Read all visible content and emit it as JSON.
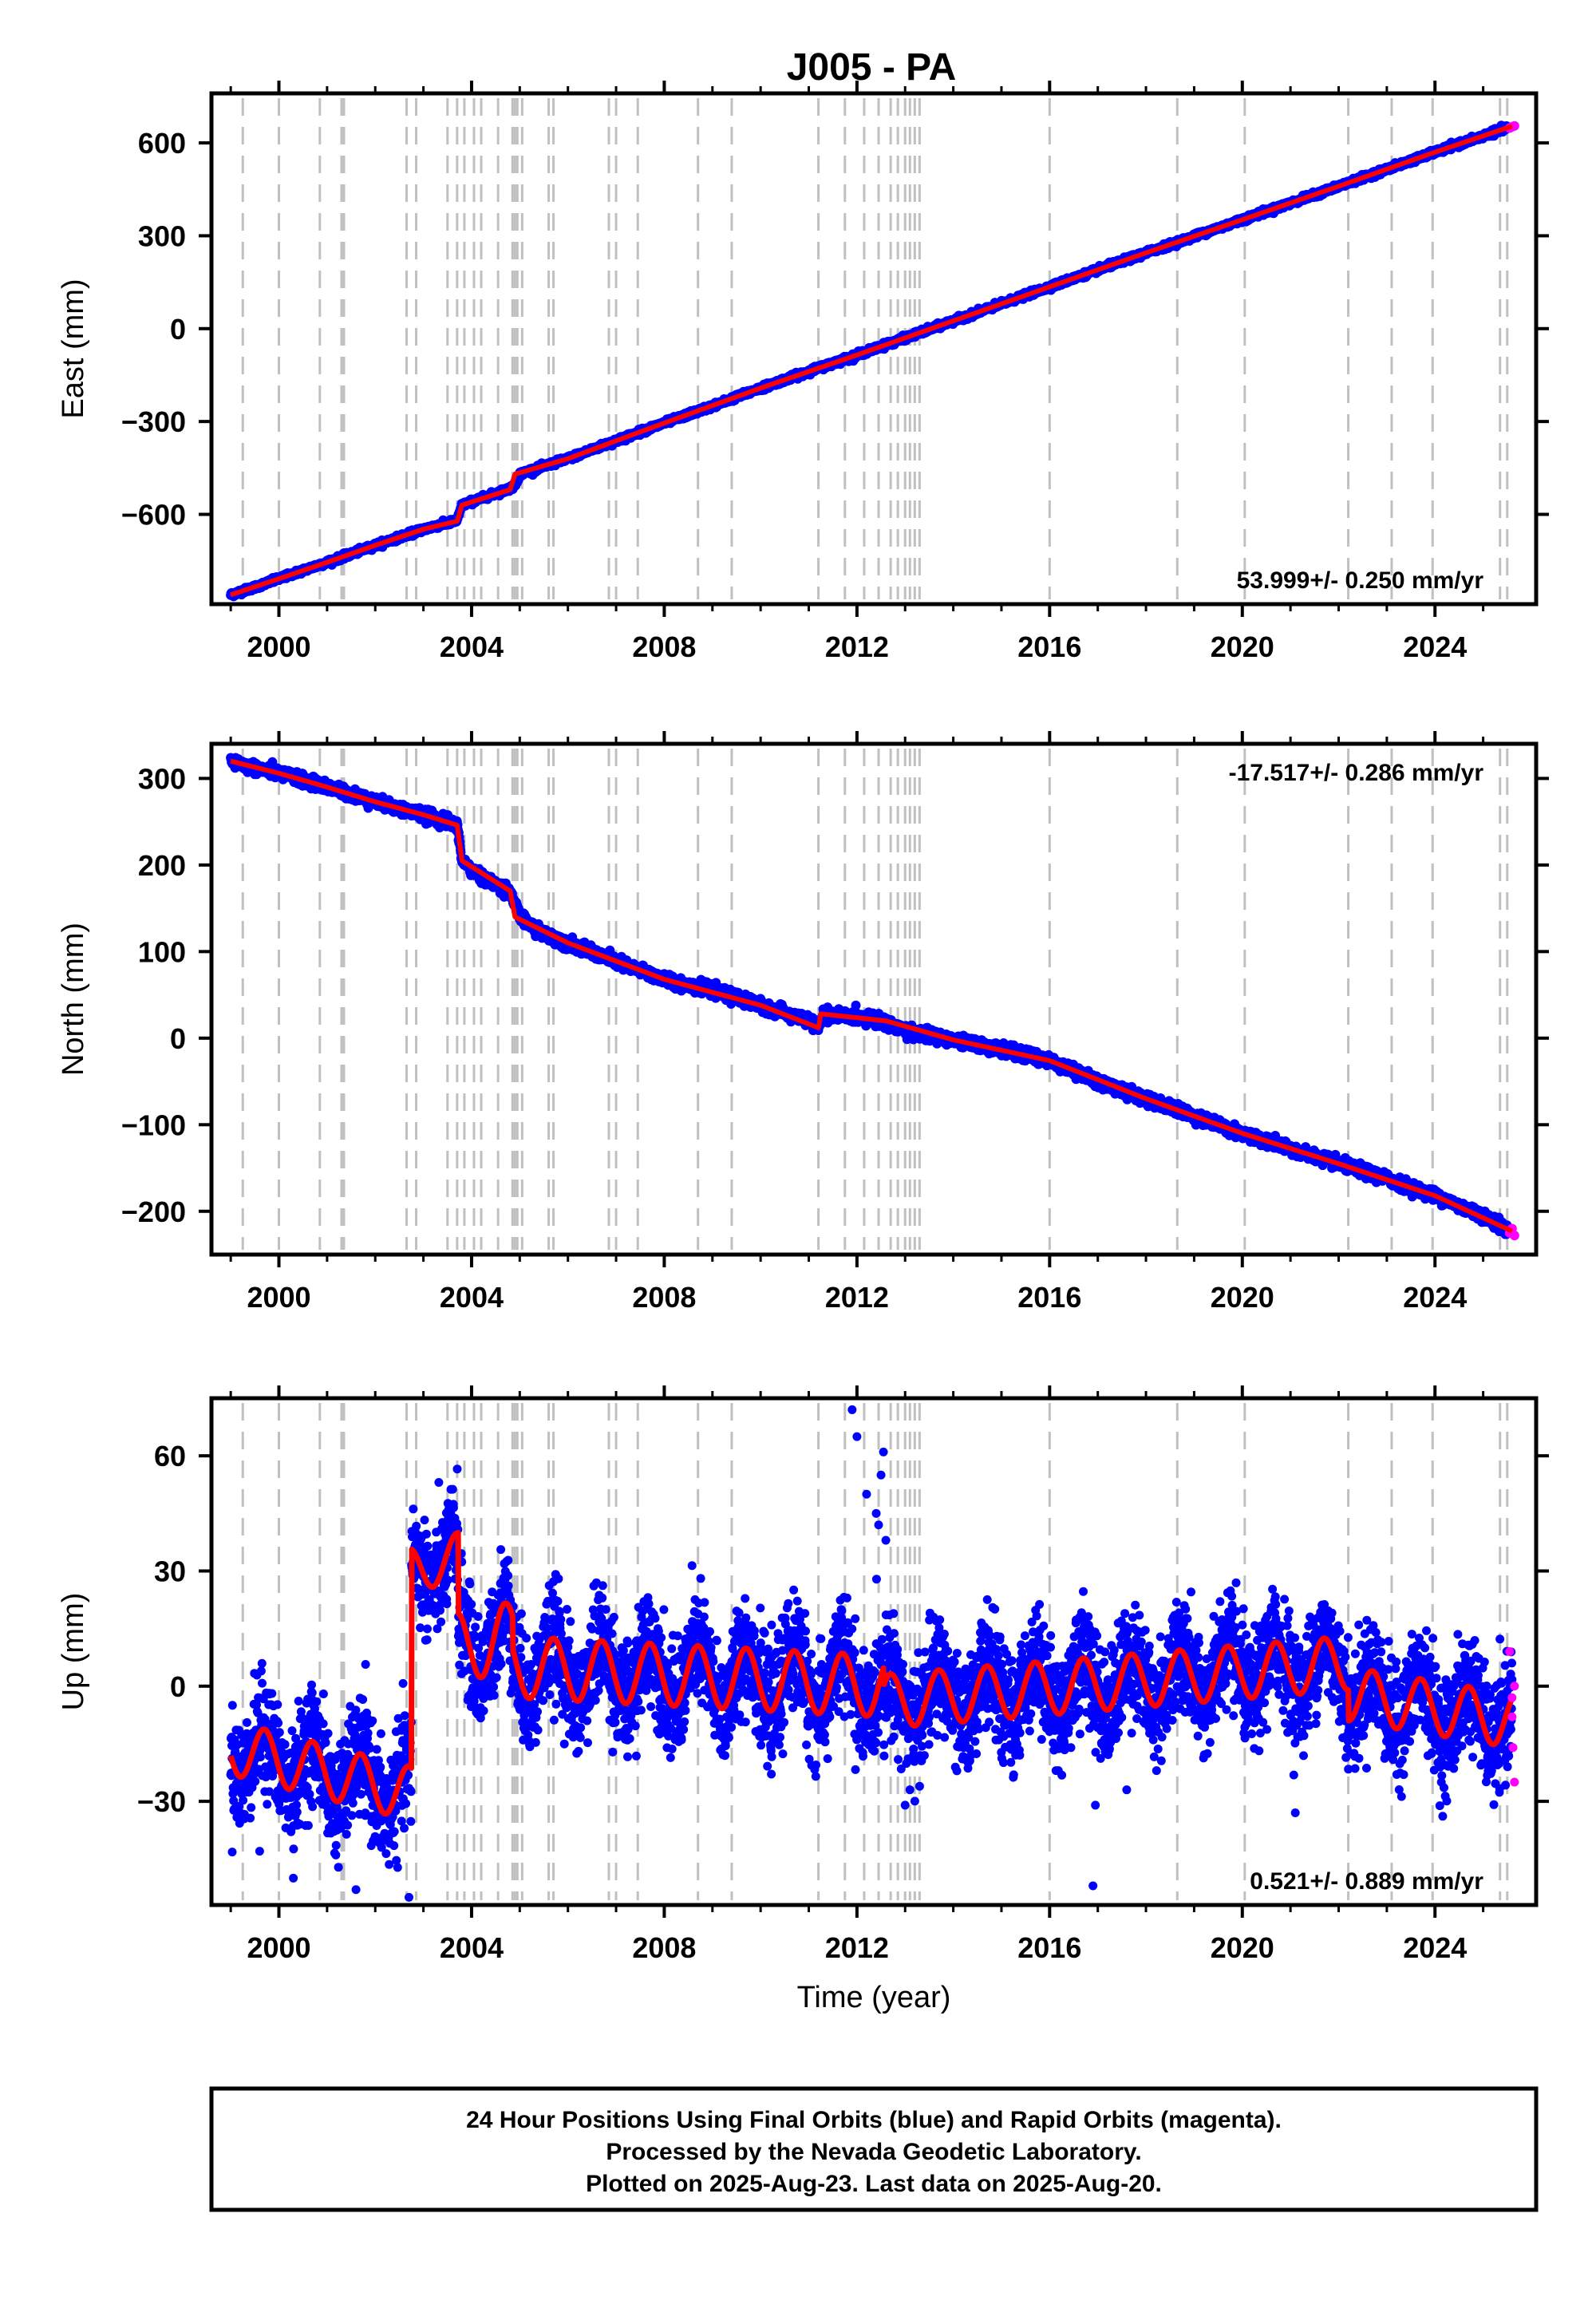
{
  "title": "J005 - PA",
  "footer": {
    "lines": [
      "24 Hour Positions Using Final Orbits (blue) and Rapid Orbits (magenta).",
      "Processed by the Nevada Geodetic Laboratory.",
      "Plotted on 2025-Aug-23. Last data on 2025-Aug-20."
    ]
  },
  "colors": {
    "final_orbits": "#0000ff",
    "rapid_orbits": "#ff00ff",
    "model_fit": "#ff0000",
    "event_lines": "#c0c0c0",
    "frame": "#000000"
  },
  "chart_data": [
    {
      "type": "scatter",
      "name": "east",
      "ylabel": "East (mm)",
      "xlabel": "",
      "xlim": [
        1998.6,
        2026.1
      ],
      "ylim": [
        -890,
        760
      ],
      "xticks": [
        2000,
        2004,
        2008,
        2012,
        2016,
        2020,
        2024
      ],
      "yticks": [
        -600,
        -300,
        0,
        300,
        600
      ],
      "rate": "53.999+/- 0.250 mm/yr",
      "rate_position": "bottom-right",
      "grid": false,
      "series": [
        {
          "name": "Final Orbits (blue)",
          "kind": "points",
          "x": [
            1999.0,
            1999.5,
            2000.0,
            2000.5,
            2001.0,
            2001.5,
            2002.0,
            2002.5,
            2003.0,
            2003.5,
            2003.7,
            2003.8,
            2004.2,
            2004.7,
            2004.9,
            2005.0,
            2005.5,
            2006.0,
            2007.0,
            2008.0,
            2009.0,
            2010.0,
            2011.0,
            2012.0,
            2013.0,
            2014.0,
            2015.0,
            2016.0,
            2017.0,
            2018.0,
            2019.0,
            2020.0,
            2021.0,
            2022.0,
            2023.0,
            2024.0,
            2025.0,
            2025.5
          ],
          "y": [
            -860,
            -835,
            -808,
            -781,
            -755,
            -728,
            -700,
            -674,
            -648,
            -628,
            -620,
            -570,
            -548,
            -522,
            -508,
            -470,
            -445,
            -420,
            -362,
            -305,
            -250,
            -192,
            -138,
            -85,
            -30,
            25,
            80,
            135,
            190,
            245,
            298,
            352,
            405,
            460,
            515,
            570,
            622,
            650
          ]
        },
        {
          "name": "Rapid Orbits (magenta)",
          "kind": "points",
          "x": [
            2025.55,
            2025.6,
            2025.65
          ],
          "y": [
            648,
            652,
            655
          ]
        },
        {
          "name": "Model fit",
          "kind": "line",
          "x": [
            1999.0,
            2000.0,
            2001.0,
            2002.0,
            2003.0,
            2003.7,
            2003.8,
            2004.8,
            2004.9,
            2006.0,
            2008.0,
            2010.0,
            2012.0,
            2014.0,
            2016.0,
            2018.0,
            2020.0,
            2022.0,
            2024.0,
            2025.6
          ],
          "y": [
            -860,
            -808,
            -755,
            -700,
            -648,
            -622,
            -570,
            -520,
            -470,
            -420,
            -305,
            -192,
            -85,
            25,
            135,
            245,
            352,
            460,
            570,
            654
          ]
        }
      ]
    },
    {
      "type": "scatter",
      "name": "north",
      "ylabel": "North (mm)",
      "xlabel": "",
      "xlim": [
        1998.6,
        2026.1
      ],
      "ylim": [
        -250,
        340
      ],
      "xticks": [
        2000,
        2004,
        2008,
        2012,
        2016,
        2020,
        2024
      ],
      "yticks": [
        -200,
        -100,
        0,
        100,
        200,
        300
      ],
      "rate": "-17.517+/- 0.286 mm/yr",
      "rate_position": "top-right",
      "grid": false,
      "series": [
        {
          "name": "Final Orbits (blue)",
          "kind": "points",
          "x": [
            1999.0,
            1999.5,
            2000.0,
            2000.5,
            2001.0,
            2001.5,
            2002.0,
            2002.5,
            2003.0,
            2003.5,
            2003.7,
            2003.8,
            2004.2,
            2004.8,
            2005.0,
            2005.5,
            2006.0,
            2007.0,
            2008.0,
            2009.0,
            2010.0,
            2011.0,
            2011.2,
            2011.3,
            2012.0,
            2012.6,
            2013.0,
            2014.0,
            2015.0,
            2016.0,
            2017.0,
            2018.0,
            2019.0,
            2020.0,
            2021.0,
            2022.0,
            2023.0,
            2024.0,
            2025.0,
            2025.5
          ],
          "y": [
            320,
            312,
            306,
            298,
            290,
            282,
            273,
            265,
            258,
            250,
            246,
            205,
            185,
            170,
            140,
            120,
            110,
            88,
            68,
            55,
            38,
            20,
            12,
            28,
            24,
            20,
            8,
            -2,
            -13,
            -26,
            -50,
            -70,
            -90,
            -110,
            -128,
            -145,
            -162,
            -182,
            -205,
            -222
          ]
        },
        {
          "name": "Rapid Orbits (magenta)",
          "kind": "points",
          "x": [
            2025.55,
            2025.6,
            2025.65
          ],
          "y": [
            -225,
            -220,
            -228
          ]
        },
        {
          "name": "Model fit",
          "kind": "line",
          "x": [
            1999.0,
            2000.0,
            2001.0,
            2002.0,
            2003.0,
            2003.7,
            2003.8,
            2004.8,
            2004.9,
            2006.0,
            2008.0,
            2010.0,
            2011.2,
            2011.25,
            2012.6,
            2014.0,
            2016.0,
            2018.0,
            2020.0,
            2022.0,
            2024.0,
            2025.6
          ],
          "y": [
            320,
            306,
            290,
            273,
            258,
            246,
            205,
            170,
            140,
            110,
            68,
            38,
            12,
            28,
            20,
            -2,
            -26,
            -70,
            -110,
            -145,
            -182,
            -223
          ]
        }
      ]
    },
    {
      "type": "scatter",
      "name": "up",
      "ylabel": "Up (mm)",
      "xlabel": "Time (year)",
      "xlim": [
        1998.6,
        2026.1
      ],
      "ylim": [
        -57,
        75
      ],
      "xticks": [
        2000,
        2004,
        2008,
        2012,
        2016,
        2020,
        2024
      ],
      "yticks": [
        -30,
        0,
        30,
        60
      ],
      "rate": "0.521+/- 0.889 mm/yr",
      "rate_position": "bottom-right",
      "grid": false,
      "model": {
        "segments": [
          {
            "x0": 1999.0,
            "x1": 2002.75,
            "base0": -16,
            "base1": -28,
            "amplitude": 7,
            "phase": 0.45
          },
          {
            "x0": 2002.75,
            "x1": 2003.72,
            "base0": 30,
            "base1": 34,
            "amplitude": 6,
            "phase": 0.45
          },
          {
            "x0": 2003.72,
            "x1": 2004.85,
            "base0": 10,
            "base1": 13,
            "amplitude": 9,
            "phase": 0.45
          },
          {
            "x0": 2004.85,
            "x1": 2012.55,
            "base0": 5,
            "base1": 0,
            "amplitude": 8,
            "phase": 0.45
          },
          {
            "x0": 2012.55,
            "x1": 2022.2,
            "base0": -4,
            "base1": 6,
            "amplitude": 7,
            "phase": 0.45
          },
          {
            "x0": 2022.2,
            "x1": 2025.6,
            "base0": -2,
            "base1": -9,
            "amplitude": 7,
            "phase": 0.45
          }
        ],
        "noise_sd": 7
      },
      "series": [
        {
          "name": "Final Orbits (blue) outliers",
          "kind": "points",
          "x": [
            2011.9,
            2012.0,
            2012.2,
            2012.4,
            2012.45,
            2012.5,
            2012.55,
            2012.6,
            2013.0,
            2016.9,
            2016.95,
            2000.3,
            2001.6,
            2002.7,
            2013.1,
            2021.1,
            2017.6,
            1999.6
          ],
          "y": [
            72,
            65,
            50,
            45,
            42,
            55,
            61,
            38,
            -31,
            -52,
            -31,
            -50,
            -53,
            -55,
            -27,
            -33,
            -27,
            -43
          ]
        },
        {
          "name": "Rapid Orbits (magenta)",
          "kind": "points",
          "x": [
            2025.55,
            2025.6,
            2025.6,
            2025.62,
            2025.65,
            2025.65
          ],
          "y": [
            9,
            -3,
            -8,
            -16,
            -25,
            0
          ]
        }
      ]
    }
  ],
  "events": [
    1999.25,
    2000.0,
    2000.85,
    2001.3,
    2001.35,
    2002.65,
    2002.85,
    2003.5,
    2003.7,
    2003.85,
    2004.05,
    2004.2,
    2004.55,
    2004.85,
    2004.9,
    2004.95,
    2005.05,
    2005.6,
    2005.7,
    2006.85,
    2007.0,
    2007.45,
    2008.7,
    2009.4,
    2011.2,
    2011.75,
    2012.15,
    2012.45,
    2012.7,
    2012.85,
    2013.0,
    2013.1,
    2013.2,
    2013.3,
    2016.0,
    2018.65,
    2020.05,
    2022.2,
    2023.1,
    2023.95,
    2025.35,
    2025.5
  ]
}
